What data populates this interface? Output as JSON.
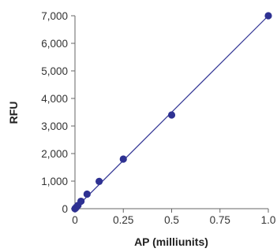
{
  "chart_data": {
    "type": "scatter",
    "xlabel": "AP (milliunits)",
    "ylabel": "RFU",
    "xlim": [
      0,
      1.0
    ],
    "ylim": [
      0,
      7000
    ],
    "x_ticks": [
      "0",
      "0.25",
      "0.5",
      "0.75",
      "1.0"
    ],
    "x_tick_values": [
      0,
      0.25,
      0.5,
      0.75,
      1.0
    ],
    "y_ticks": [
      "0",
      "1,000",
      "2,000",
      "3,000",
      "4,000",
      "5,000",
      "6,000",
      "7,000"
    ],
    "y_tick_values": [
      0,
      1000,
      2000,
      3000,
      4000,
      5000,
      6000,
      7000
    ],
    "grid": false,
    "series": [
      {
        "color": "#2e3192",
        "points": [
          {
            "x": 0,
            "y": 0
          },
          {
            "x": 0.0039,
            "y": 30
          },
          {
            "x": 0.0078,
            "y": 60
          },
          {
            "x": 0.0156,
            "y": 120
          },
          {
            "x": 0.03125,
            "y": 270
          },
          {
            "x": 0.0625,
            "y": 530
          },
          {
            "x": 0.125,
            "y": 990
          },
          {
            "x": 0.25,
            "y": 1800
          },
          {
            "x": 0.5,
            "y": 3400
          },
          {
            "x": 1.0,
            "y": 7000
          }
        ]
      }
    ],
    "fit_line": {
      "color": "#2e3192",
      "from": [
        0,
        0
      ],
      "to": [
        1.0,
        7000
      ]
    }
  }
}
